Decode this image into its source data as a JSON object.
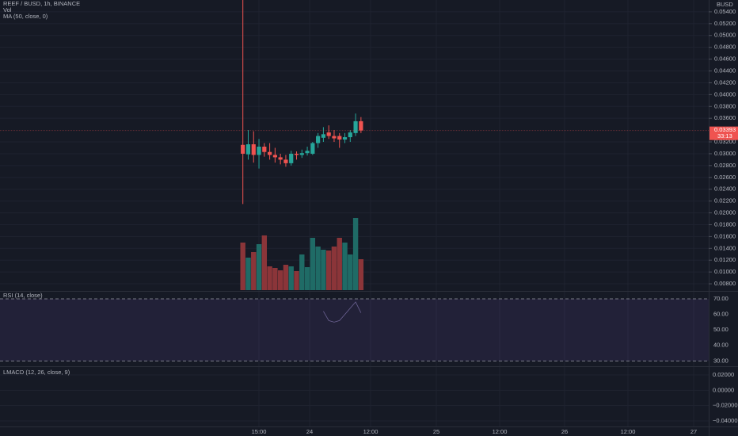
{
  "header": {
    "symbol": "REEF / BUSD, 1h, BINANCE",
    "volume": "Vol",
    "ma": "MA (50, close, 0)"
  },
  "price_axis": {
    "currency": "BUSD",
    "ylim": [
      0.0068,
      0.056
    ],
    "ticks": [
      {
        "value": 0.054,
        "label": "0.05400"
      },
      {
        "value": 0.052,
        "label": "0.05200"
      },
      {
        "value": 0.05,
        "label": "0.05000"
      },
      {
        "value": 0.048,
        "label": "0.04800"
      },
      {
        "value": 0.046,
        "label": "0.04600"
      },
      {
        "value": 0.044,
        "label": "0.04400"
      },
      {
        "value": 0.042,
        "label": "0.04200"
      },
      {
        "value": 0.04,
        "label": "0.04000"
      },
      {
        "value": 0.038,
        "label": "0.03800"
      },
      {
        "value": 0.036,
        "label": "0.03600"
      },
      {
        "value": 0.032,
        "label": "0.03200"
      },
      {
        "value": 0.03,
        "label": "0.03000"
      },
      {
        "value": 0.028,
        "label": "0.02800"
      },
      {
        "value": 0.026,
        "label": "0.02600"
      },
      {
        "value": 0.024,
        "label": "0.02400"
      },
      {
        "value": 0.022,
        "label": "0.02200"
      },
      {
        "value": 0.02,
        "label": "0.02000"
      },
      {
        "value": 0.018,
        "label": "0.01800"
      },
      {
        "value": 0.016,
        "label": "0.01600"
      },
      {
        "value": 0.014,
        "label": "0.01400"
      },
      {
        "value": 0.012,
        "label": "0.01200"
      },
      {
        "value": 0.01,
        "label": "0.01000"
      },
      {
        "value": 0.008,
        "label": "0.00800"
      }
    ]
  },
  "candles": {
    "open": [
      0.0315,
      0.0299,
      0.0316,
      0.0298,
      0.0312,
      0.0303,
      0.0298,
      0.0294,
      0.029,
      0.0284,
      0.03,
      0.0298,
      0.0301,
      0.03,
      0.0318,
      0.0327,
      0.0336,
      0.033,
      0.033,
      0.0324,
      0.0328,
      0.0335,
      0.0355
    ],
    "high": [
      0.056,
      0.034,
      0.0338,
      0.0325,
      0.0318,
      0.0318,
      0.031,
      0.03,
      0.0298,
      0.0305,
      0.0304,
      0.0307,
      0.0312,
      0.032,
      0.0335,
      0.0345,
      0.0348,
      0.034,
      0.0335,
      0.0335,
      0.034,
      0.0368,
      0.0362
    ],
    "low": [
      0.0215,
      0.029,
      0.0285,
      0.0275,
      0.0295,
      0.029,
      0.0285,
      0.0282,
      0.0278,
      0.028,
      0.029,
      0.0293,
      0.0297,
      0.0298,
      0.031,
      0.032,
      0.0325,
      0.032,
      0.031,
      0.0318,
      0.032,
      0.033,
      0.0335
    ],
    "close": [
      0.03,
      0.0316,
      0.0298,
      0.0312,
      0.0303,
      0.0298,
      0.0294,
      0.029,
      0.0284,
      0.03,
      0.0298,
      0.0301,
      0.0305,
      0.0318,
      0.033,
      0.0333,
      0.033,
      0.0326,
      0.0324,
      0.0328,
      0.0336,
      0.0355,
      0.03393
    ]
  },
  "volume": [
    60,
    41,
    48,
    58,
    69,
    30,
    28,
    25,
    32,
    30,
    24,
    45,
    29,
    66,
    55,
    51,
    50,
    55,
    66,
    60,
    45,
    91,
    39
  ],
  "last_price": {
    "value": 0.03393,
    "countdown": "33:13"
  },
  "rsi": {
    "title": "RSI (14, close)",
    "ylim": [
      26.6,
      74.6
    ],
    "ticks": [
      {
        "value": 70,
        "label": "70.00"
      },
      {
        "value": 60,
        "label": "60.00"
      },
      {
        "value": 50,
        "label": "50.00"
      },
      {
        "value": 40,
        "label": "40.00"
      },
      {
        "value": 30,
        "label": "30.00"
      }
    ],
    "values": [
      null,
      null,
      null,
      null,
      null,
      null,
      null,
      null,
      null,
      null,
      null,
      null,
      null,
      null,
      null,
      62,
      56,
      55,
      56,
      60,
      64,
      68,
      61
    ]
  },
  "macd": {
    "title": "LMACD (12, 26, close, 9)",
    "ylim": [
      -0.0472,
      0.0303
    ],
    "ticks": [
      {
        "value": 0.02,
        "label": "0.02000"
      },
      {
        "value": 0,
        "label": "0.00000"
      },
      {
        "value": -0.02,
        "label": "−0.02000"
      },
      {
        "value": -0.04,
        "label": "−0.04000"
      }
    ]
  },
  "time_axis": [
    "15:00",
    "24",
    "12:00",
    "25",
    "12:00",
    "26",
    "12:00",
    "27"
  ]
}
